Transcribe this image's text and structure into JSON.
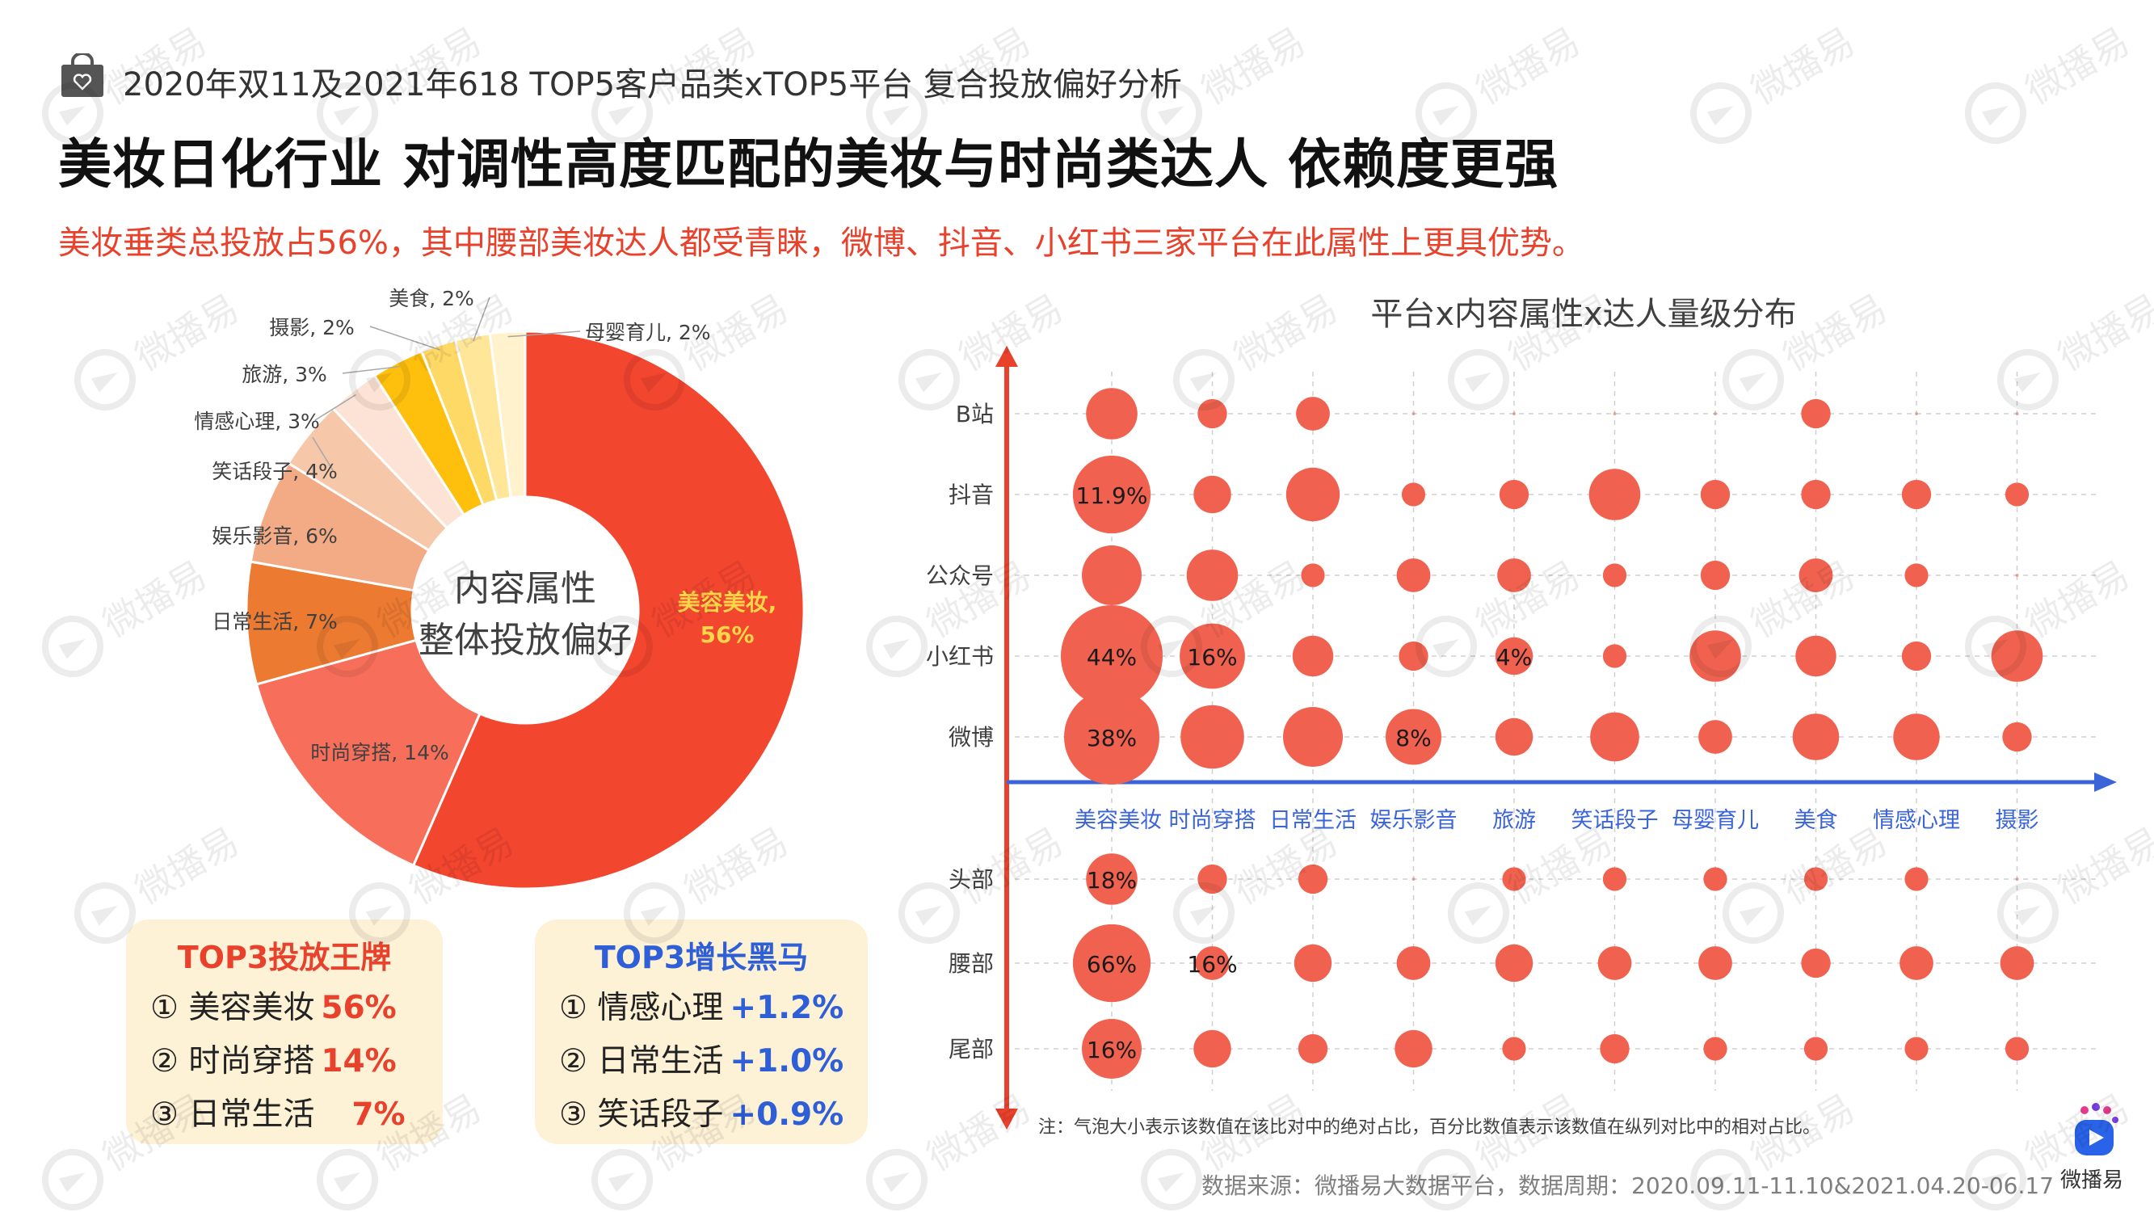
{
  "header": {
    "kicker": "2020年双11及2021年618  TOP5客户品类xTOP5平台 复合投放偏好分析",
    "headline": "美妆日化行业 对调性高度匹配的美妆与时尚类达人 依赖度更强",
    "subhead": "美妆垂类总投放占56%，其中腰部美妆达人都受青睐，微博、抖音、小红书三家平台在此属性上更具优势。",
    "icon": "shopping-bag-heart-icon"
  },
  "chart_data": [
    {
      "type": "pie",
      "title": "",
      "center_label": [
        "内容属性",
        "整体投放偏好"
      ],
      "categories": [
        "美容美妆",
        "时尚穿搭",
        "日常生活",
        "娱乐影音",
        "笑话段子",
        "情感心理",
        "旅游",
        "摄影",
        "美食",
        "母婴育儿"
      ],
      "values": [
        56,
        14,
        7,
        6,
        4,
        3,
        3,
        2,
        2,
        2
      ],
      "labels": [
        "美容美妆, 56%",
        "时尚穿搭, 14%",
        "日常生活, 7%",
        "娱乐影音, 6%",
        "笑话段子, 4%",
        "情感心理, 3%",
        "旅游, 3%",
        "摄影, 2%",
        "美食, 2%",
        "母婴育儿, 2%"
      ],
      "colors": [
        "#f2462f",
        "#f76f5a",
        "#ec7a31",
        "#f3ab86",
        "#f7c7aa",
        "#fde3d5",
        "#ffbf0d",
        "#ffd966",
        "#ffe699",
        "#fff2cc"
      ],
      "highlight_label": [
        "美容美妆,",
        "56%"
      ]
    },
    {
      "type": "scatter",
      "title": "平台x内容属性x达人量级分布",
      "x_categories": [
        "美容美妆",
        "时尚穿搭",
        "日常生活",
        "娱乐影音",
        "旅游",
        "笑话段子",
        "母婴育儿",
        "美食",
        "情感心理",
        "摄影"
      ],
      "platforms": [
        "B站",
        "抖音",
        "公众号",
        "小红书",
        "微博"
      ],
      "tiers": [
        "头部",
        "腰部",
        "尾部"
      ],
      "platform_sizes": [
        [
          9,
          2,
          3,
          0,
          0,
          0,
          0,
          2,
          0,
          0
        ],
        [
          24,
          4,
          10,
          1,
          2,
          9,
          2,
          2,
          2,
          1
        ],
        [
          13,
          9,
          1,
          3,
          3,
          1,
          2,
          3,
          1,
          0
        ],
        [
          44,
          16,
          5,
          2,
          4,
          1,
          9,
          5,
          2,
          9
        ],
        [
          38,
          15,
          13,
          11,
          4,
          8,
          3,
          7,
          7,
          2
        ]
      ],
      "platform_labels": [
        [
          null,
          null,
          null,
          null,
          null,
          null,
          null,
          null,
          null,
          null
        ],
        [
          "11.9%",
          null,
          null,
          null,
          null,
          null,
          null,
          null,
          null,
          null
        ],
        [
          null,
          null,
          null,
          null,
          null,
          null,
          null,
          null,
          null,
          null
        ],
        [
          "44%",
          "16%",
          null,
          null,
          "4%",
          null,
          null,
          null,
          null,
          null
        ],
        [
          "38%",
          null,
          null,
          "8%",
          null,
          null,
          null,
          null,
          null,
          null
        ]
      ],
      "tier_sizes": [
        [
          9,
          2,
          2,
          0,
          1,
          1,
          1,
          1,
          1,
          0
        ],
        [
          24,
          3,
          4,
          3,
          4,
          3,
          3,
          2,
          3,
          3
        ],
        [
          13,
          4,
          2,
          4,
          1,
          2,
          1,
          1,
          1,
          1
        ]
      ],
      "tier_labels": [
        [
          "18%",
          null,
          null,
          null,
          null,
          null,
          null,
          null,
          null,
          null
        ],
        [
          "66%",
          "16%",
          null,
          null,
          null,
          null,
          null,
          null,
          null,
          null
        ],
        [
          "16%",
          null,
          null,
          null,
          null,
          null,
          null,
          null,
          null,
          null
        ]
      ],
      "bubble_color": "#f0624f",
      "axis_color_y": "#e8412c",
      "axis_color_x": "#3a64d8",
      "note": "注：气泡大小表示该数值在该比对中的绝对占比，百分比数值表示该数值在纵列对比中的相对占比。"
    }
  ],
  "cards": {
    "top3": {
      "title": "TOP3投放王牌",
      "rows": [
        {
          "rank": "①",
          "name": "美容美妆",
          "value": "56%"
        },
        {
          "rank": "②",
          "name": "时尚穿搭",
          "value": "14%"
        },
        {
          "rank": "③",
          "name": "日常生活",
          "value": "7%"
        }
      ]
    },
    "growth": {
      "title": "TOP3增长黑马",
      "rows": [
        {
          "rank": "①",
          "name": "情感心理",
          "value": "+1.2%"
        },
        {
          "rank": "②",
          "name": "日常生活",
          "value": "+1.0%"
        },
        {
          "rank": "③",
          "name": "笑话段子",
          "value": "+0.9%"
        }
      ]
    }
  },
  "footer": {
    "source": "数据来源：微播易大数据平台，数据周期：2020.09.11-11.10&2021.04.20-06.17",
    "brand": "微播易",
    "watermark": "微播易"
  }
}
